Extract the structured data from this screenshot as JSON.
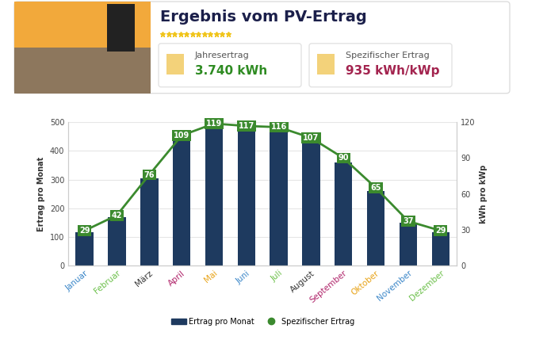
{
  "header": {
    "title": "Ergebnis vom PV-Ertrag",
    "cards": [
      {
        "label": "Jahresertrag",
        "value": "3.740 kWh"
      },
      {
        "label": "Spezifischer Ertrag",
        "value": "935 kWh/kWp"
      }
    ]
  },
  "chart_data": {
    "type": "bar",
    "categories": [
      "Januar",
      "Februar",
      "März",
      "April",
      "Mai",
      "Juni",
      "Juli",
      "August",
      "September",
      "Oktober",
      "November",
      "Dezember"
    ],
    "ylabel": "Ertrag pro Monat",
    "y2label": "kWh pro kWp",
    "ylim": [
      0,
      500
    ],
    "yticks": [
      0,
      100,
      200,
      300,
      400,
      500
    ],
    "y2lim": [
      0,
      120
    ],
    "y2ticks": [
      0,
      30,
      60,
      90,
      120
    ],
    "grid": true,
    "legend": "lower center",
    "series": [
      {
        "name": "Ertrag pro Monat",
        "type": "bar",
        "color": "#1e3a5f",
        "values": [
          116,
          168,
          304,
          436,
          476,
          468,
          464,
          428,
          360,
          260,
          148,
          116
        ]
      },
      {
        "name": "Spezifischer Ertrag",
        "type": "line",
        "axis": "y2",
        "color": "#3b8a2e",
        "marker": "s",
        "line_style": "solid",
        "data_labels": true,
        "values": [
          29,
          42,
          76,
          109,
          119,
          117,
          116,
          107,
          90,
          65,
          37,
          29
        ]
      }
    ]
  }
}
